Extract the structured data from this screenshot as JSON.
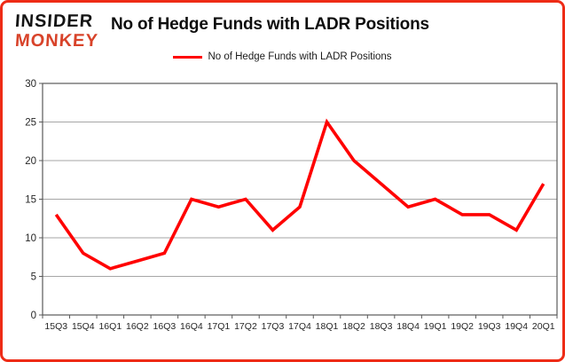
{
  "brand": {
    "line1": "INSIDER",
    "line2": "MONKEY",
    "line1_color": "#141414",
    "line2_color": "#d8432a"
  },
  "header": {
    "title": "No of Hedge Funds with LADR Positions"
  },
  "legend": {
    "label": "No of Hedge Funds with LADR Positions",
    "swatch_color": "#ff0000"
  },
  "chart_data": {
    "type": "line",
    "title": "No of Hedge Funds with LADR Positions",
    "categories": [
      "15Q3",
      "15Q4",
      "16Q1",
      "16Q2",
      "16Q3",
      "16Q4",
      "17Q1",
      "17Q2",
      "17Q3",
      "17Q4",
      "18Q1",
      "18Q2",
      "18Q3",
      "18Q4",
      "19Q1",
      "19Q2",
      "19Q3",
      "19Q4",
      "20Q1"
    ],
    "values": [
      13,
      8,
      6,
      7,
      8,
      15,
      14,
      15,
      11,
      14,
      25,
      20,
      17,
      14,
      15,
      13,
      13,
      11,
      17
    ],
    "xlabel": "",
    "ylabel": "",
    "ylim": [
      0,
      30
    ],
    "ytick_step": 5,
    "yticks": [
      0,
      5,
      10,
      15,
      20,
      25,
      30
    ],
    "grid": "horizontal",
    "legend_position": "top-center",
    "line_color": "#ff0000",
    "line_width": 3.6,
    "gridline_color": "#a6a6a6",
    "frame_color": "#595959",
    "tick_label_color": "#262626",
    "window_border_color": "#ee2b16"
  }
}
